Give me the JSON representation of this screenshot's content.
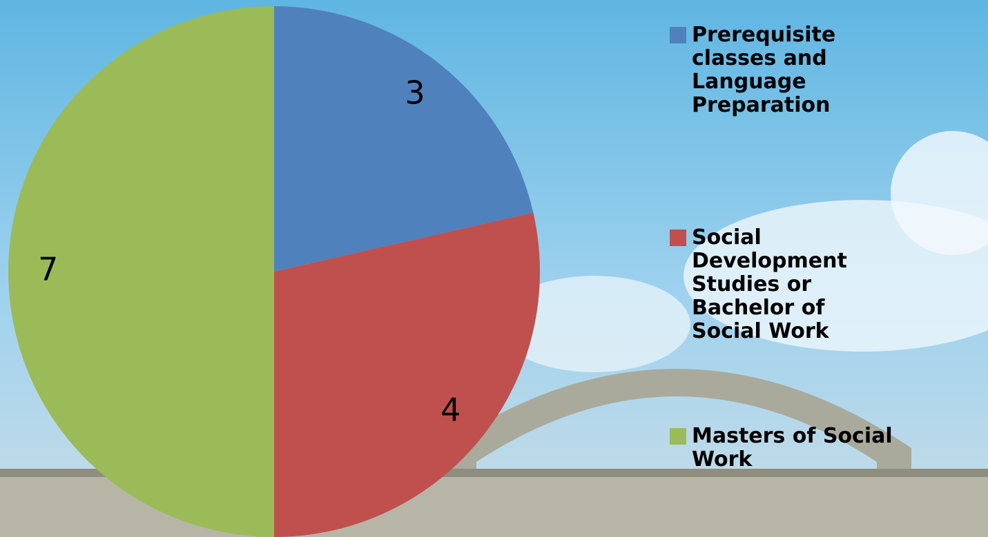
{
  "chart_data": {
    "type": "pie",
    "categories": [
      "Prerequisite classes  and Language Preparation",
      "Social Development Studies  or Bachelor  of Social Work",
      "Masters of Social Work"
    ],
    "values": [
      3,
      4,
      7
    ],
    "colors": [
      "#4f81bd",
      "#c0504d",
      "#9bbb59"
    ],
    "legend": "right"
  }
}
